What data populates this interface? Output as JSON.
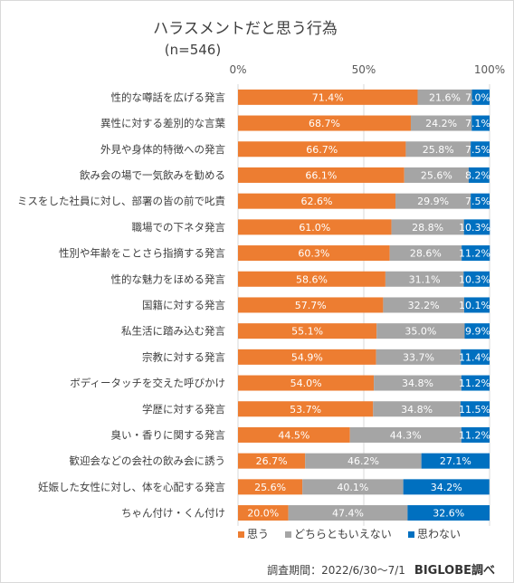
{
  "chart_data": {
    "type": "bar",
    "stacked": true,
    "orientation": "horizontal",
    "title": "ハラスメントだと思う行為",
    "subtitle": "(n=546)",
    "x_ticks": [
      "0%",
      "50%",
      "100%"
    ],
    "xlim": [
      0,
      100
    ],
    "legend_position": "bottom",
    "categories": [
      "性的な噂話を広げる発言",
      "異性に対する差別的な言葉",
      "外見や身体的特徴への発言",
      "飲み会の場で一気飲みを勧める",
      "ミスをした社員に対し、部署の皆の前で叱責",
      "職場での下ネタ発言",
      "性別や年齢をことさら指摘する発言",
      "性的な魅力をほめる発言",
      "国籍に対する発言",
      "私生活に踏み込む発言",
      "宗教に対する発言",
      "ボディータッチを交えた呼びかけ",
      "学歴に対する発言",
      "臭い・香りに関する発言",
      "歓迎会などの会社の飲み会に誘う",
      "妊娠した女性に対し、体を心配する発言",
      "ちゃん付け・くん付け"
    ],
    "series": [
      {
        "name": "思う",
        "color": "#ed7d31",
        "values": [
          71.4,
          68.7,
          66.7,
          66.1,
          62.6,
          61.0,
          60.3,
          58.6,
          57.7,
          55.1,
          54.9,
          54.0,
          53.7,
          44.5,
          26.7,
          25.6,
          20.0
        ],
        "labels": [
          "71.4%",
          "68.7%",
          "66.7%",
          "66.1%",
          "62.6%",
          "61.0%",
          "60.3%",
          "58.6%",
          "57.7%",
          "55.1%",
          "54.9%",
          "54.0%",
          "53.7%",
          "44.5%",
          "26.7%",
          "25.6%",
          "20.0%"
        ]
      },
      {
        "name": "どちらともいえない",
        "color": "#a5a5a5",
        "values": [
          21.6,
          24.2,
          25.8,
          25.6,
          29.9,
          28.8,
          28.6,
          31.1,
          32.2,
          35.0,
          33.7,
          34.8,
          34.8,
          44.3,
          46.2,
          40.1,
          47.4
        ],
        "labels": [
          "21.6%",
          "24.2%",
          "25.8%",
          "25.6%",
          "29.9%",
          "28.8%",
          "28.6%",
          "31.1%",
          "32.2%",
          "35.0%",
          "33.7%",
          "34.8%",
          "34.8%",
          "44.3%",
          "46.2%",
          "40.1%",
          "47.4%"
        ]
      },
      {
        "name": "思わない",
        "color": "#0070c0",
        "values": [
          7.0,
          7.1,
          7.5,
          8.2,
          7.5,
          10.3,
          11.2,
          10.3,
          10.1,
          9.9,
          11.4,
          11.2,
          11.5,
          11.2,
          27.1,
          34.2,
          32.6
        ],
        "labels": [
          "7.0%",
          "7.1%",
          "7.5%",
          "8.2%",
          "7.5%",
          "10.3%",
          "11.2%",
          "10.3%",
          "10.1%",
          "9.9%",
          "11.4%",
          "11.2%",
          "11.5%",
          "11.2%",
          "27.1%",
          "34.2%",
          "32.6%"
        ]
      }
    ]
  },
  "footer": {
    "period": "調査期間：2022/6/30〜7/1",
    "source": "BIGLOBE調べ"
  }
}
